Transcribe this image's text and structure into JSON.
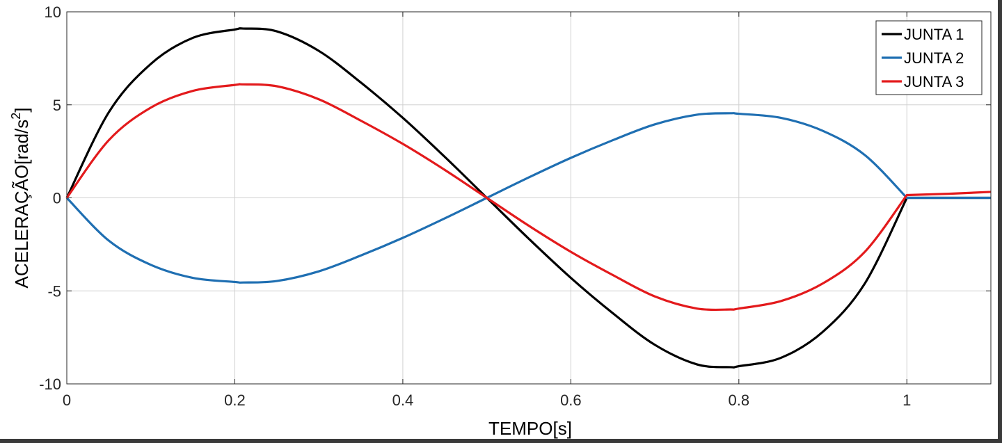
{
  "chart_data": {
    "type": "line",
    "xlabel": "TEMPO[s]",
    "ylabel": "ACELERAÇÃO[rad/s",
    "ylabel_sup": "2",
    "ylabel_end": "]",
    "xlim": [
      0,
      1.1
    ],
    "ylim": [
      -10,
      10
    ],
    "xticks": [
      0,
      0.2,
      0.4,
      0.6,
      0.8,
      1
    ],
    "xtick_labels": [
      "0",
      "0.2",
      "0.4",
      "0.6",
      "0.8",
      "1"
    ],
    "yticks": [
      -10,
      -5,
      0,
      5,
      10
    ],
    "ytick_labels": [
      "-10",
      "-5",
      "0",
      "5",
      "10"
    ],
    "grid": true,
    "legend_position": "top-right",
    "series": [
      {
        "name": "JUNTA 1",
        "color": "#000000",
        "x": [
          0,
          0.05,
          0.1,
          0.15,
          0.2,
          0.21,
          0.25,
          0.3,
          0.35,
          0.4,
          0.45,
          0.5,
          0.55,
          0.6,
          0.65,
          0.7,
          0.75,
          0.79,
          0.8,
          0.85,
          0.9,
          0.95,
          1.0,
          1.05,
          1.1
        ],
        "y": [
          0,
          4.6,
          7.2,
          8.6,
          9.05,
          9.1,
          8.95,
          7.9,
          6.2,
          4.3,
          2.2,
          0,
          -2.2,
          -4.3,
          -6.2,
          -7.9,
          -8.95,
          -9.1,
          -9.05,
          -8.6,
          -7.2,
          -4.6,
          0,
          0,
          0
        ]
      },
      {
        "name": "JUNTA 2",
        "color": "#1f6fb2",
        "x": [
          0,
          0.05,
          0.1,
          0.15,
          0.2,
          0.21,
          0.25,
          0.3,
          0.35,
          0.4,
          0.45,
          0.5,
          0.55,
          0.6,
          0.65,
          0.7,
          0.75,
          0.79,
          0.8,
          0.85,
          0.9,
          0.95,
          1.0,
          1.05,
          1.1
        ],
        "y": [
          0,
          -2.3,
          -3.6,
          -4.3,
          -4.52,
          -4.55,
          -4.47,
          -3.95,
          -3.1,
          -2.15,
          -1.1,
          0,
          1.1,
          2.15,
          3.1,
          3.95,
          4.47,
          4.55,
          4.52,
          4.3,
          3.6,
          2.3,
          0,
          0,
          0
        ]
      },
      {
        "name": "JUNTA 3",
        "color": "#e31a1c",
        "x": [
          0,
          0.05,
          0.1,
          0.15,
          0.2,
          0.21,
          0.25,
          0.3,
          0.35,
          0.4,
          0.45,
          0.5,
          0.55,
          0.6,
          0.65,
          0.7,
          0.75,
          0.79,
          0.8,
          0.85,
          0.9,
          0.95,
          1.0,
          1.05,
          1.1
        ],
        "y": [
          0,
          3.1,
          4.85,
          5.75,
          6.07,
          6.1,
          6.0,
          5.3,
          4.15,
          2.9,
          1.5,
          0,
          -1.5,
          -2.9,
          -4.15,
          -5.3,
          -5.95,
          -6.0,
          -5.95,
          -5.55,
          -4.6,
          -2.9,
          0.15,
          0.22,
          0.32
        ]
      }
    ]
  }
}
